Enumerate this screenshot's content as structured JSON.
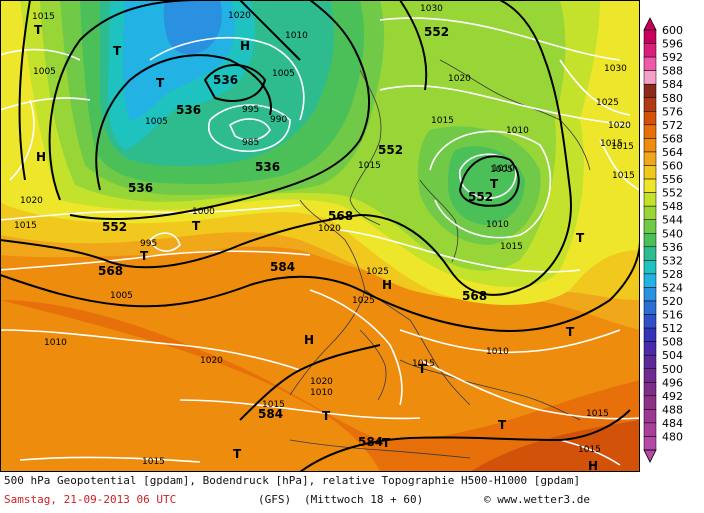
{
  "footer": {
    "title": "500 hPa Geopotential [gpdam], Bodendruck [hPa], relative Topographie H500-H1000 [gpdam]",
    "date": "Samstag, 21-09-2013  06 UTC",
    "model": "(GFS)",
    "validity": "(Mittwoch 18 + 60)",
    "copyright": "© www.wetter3.de"
  },
  "legend": {
    "values": [
      600,
      596,
      592,
      588,
      584,
      580,
      576,
      572,
      568,
      564,
      560,
      556,
      552,
      548,
      544,
      540,
      536,
      532,
      528,
      524,
      520,
      516,
      512,
      508,
      504,
      500,
      496,
      492,
      488,
      484,
      480
    ],
    "colors": [
      "#c8005a",
      "#d8207a",
      "#ee5aa8",
      "#f5a0c8",
      "#8c2a1a",
      "#b03a14",
      "#d2520a",
      "#e8700a",
      "#ee8c0e",
      "#f0a81a",
      "#f0c81e",
      "#eee62a",
      "#c4e22c",
      "#98d638",
      "#70ca48",
      "#4cc058",
      "#2ebc8e",
      "#1ec2be",
      "#22b2e4",
      "#2a90e0",
      "#2c6ed4",
      "#3050c8",
      "#3434b8",
      "#4a2aa8",
      "#5c2898",
      "#6e2a8e",
      "#7e2e88",
      "#8e3286",
      "#9c3890",
      "#a8409a",
      "#b44aa6"
    ]
  },
  "map": {
    "geopotential_labels": [
      "536",
      "536",
      "536",
      "536",
      "552",
      "552",
      "552",
      "552",
      "568",
      "568",
      "568",
      "584",
      "584",
      "584"
    ],
    "pressure_labels": [
      "1015",
      "1020",
      "1010",
      "1005",
      "1005",
      "1030",
      "1020",
      "1030",
      "1025",
      "1020",
      "1005",
      "1010",
      "1015",
      "995",
      "990",
      "985",
      "1010",
      "1015",
      "1020",
      "1005",
      "1010",
      "1015",
      "1000",
      "1020",
      "1005",
      "1010",
      "995",
      "1025",
      "1025",
      "1015",
      "1015",
      "1020",
      "1010",
      "1015",
      "1015",
      "1020",
      "1015",
      "1015",
      "1015",
      "1015",
      "1010",
      "1015"
    ],
    "pressure_centers": [
      "T",
      "H",
      "T",
      "T",
      "H",
      "T",
      "T",
      "T",
      "H",
      "H",
      "T",
      "T",
      "T",
      "T",
      "T",
      "T",
      "T",
      "H"
    ]
  }
}
